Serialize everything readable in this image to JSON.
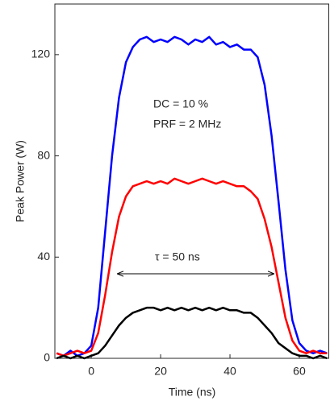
{
  "chart_data": {
    "type": "line",
    "x_label": "Time (ns)",
    "y_label": "Peak Power (W)",
    "annotations": [
      "DC = 10 %",
      "PRF = 2 MHz",
      "τ = 50 ns"
    ],
    "x": [
      -10,
      -8,
      -6,
      -4,
      -2,
      0,
      2,
      4,
      6,
      8,
      10,
      12,
      14,
      16,
      18,
      20,
      22,
      24,
      26,
      28,
      30,
      32,
      34,
      36,
      38,
      40,
      42,
      44,
      46,
      48,
      50,
      52,
      54,
      56,
      58,
      60,
      62,
      64,
      66,
      68
    ],
    "series": [
      {
        "color": "#0000ff",
        "values": [
          2,
          1,
          3,
          1,
          2,
          5,
          20,
          50,
          80,
          103,
          117,
          123,
          126,
          127,
          125,
          126,
          125,
          127,
          126,
          124,
          126,
          125,
          127,
          124,
          125,
          123,
          124,
          122,
          122,
          119,
          108,
          88,
          62,
          35,
          15,
          6,
          3,
          2,
          3,
          2
        ]
      },
      {
        "color": "#ff0000",
        "values": [
          2,
          1,
          2,
          3,
          2,
          3,
          10,
          25,
          42,
          56,
          64,
          68,
          69,
          70,
          69,
          70,
          69,
          71,
          70,
          69,
          70,
          71,
          70,
          69,
          70,
          69,
          68,
          68,
          66,
          63,
          55,
          44,
          30,
          16,
          7,
          3,
          2,
          3,
          2,
          2
        ]
      },
      {
        "color": "#000000",
        "values": [
          0,
          1,
          0,
          1,
          0,
          1,
          2,
          5,
          9,
          13,
          16,
          18,
          19,
          20,
          20,
          19,
          20,
          19,
          20,
          19,
          20,
          19,
          20,
          19,
          20,
          19,
          19,
          18,
          18,
          16,
          13,
          10,
          6,
          4,
          2,
          1,
          1,
          0,
          1,
          0
        ]
      }
    ],
    "xlim": [
      -10.5,
      68.5
    ],
    "xticks": [
      0,
      20,
      40,
      60
    ],
    "ylim": [
      0,
      140
    ],
    "yticks": [
      0,
      40,
      80,
      120
    ]
  }
}
